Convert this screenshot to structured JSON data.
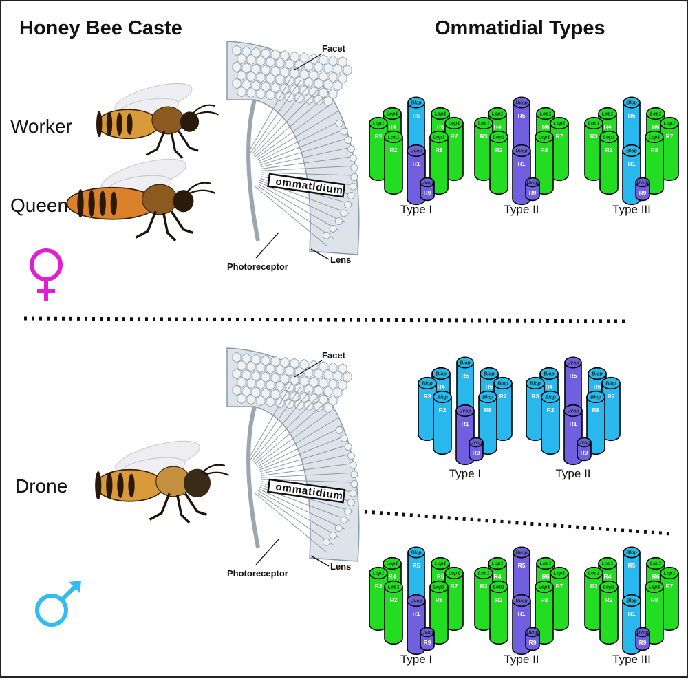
{
  "headings": {
    "caste": "Honey Bee Caste",
    "types": "Ommatidial Types"
  },
  "castes": {
    "worker": "Worker",
    "queen": "Queen",
    "drone": "Drone"
  },
  "eye_labels": {
    "facet": "Facet",
    "ommatidium": "ommatidium",
    "photoreceptor": "Photoreceptor",
    "lens": "Lens"
  },
  "type_labels": {
    "type1": "Type I",
    "type2": "Type II",
    "type3": "Type III"
  },
  "receptors": [
    "R1",
    "R2",
    "R3",
    "R4",
    "R5",
    "R6",
    "R7",
    "R8",
    "R9"
  ],
  "opsins": {
    "green": "Lop1",
    "blue": "Blop",
    "uv": "Uvop"
  },
  "colors": {
    "green": "#22dd22",
    "blue": "#29b8ee",
    "uv": "#7060e0",
    "female_symbol": "#e020d0",
    "male_symbol": "#33bbee",
    "eye_stroke": "#8a9aa6",
    "eye_fill": "#dde3e8"
  },
  "groups": [
    {
      "section": "female",
      "types": [
        {
          "label_key": "type1",
          "r5": "blue",
          "r1": "uv",
          "outer": "green"
        },
        {
          "label_key": "type2",
          "r5": "uv",
          "r1": "uv",
          "outer": "green"
        },
        {
          "label_key": "type3",
          "r5": "blue",
          "r1": "blue",
          "outer": "green"
        }
      ]
    },
    {
      "section": "drone-dorsal",
      "types": [
        {
          "label_key": "type1",
          "r5": "blue",
          "r1": "uv",
          "outer": "blue"
        },
        {
          "label_key": "type2",
          "r5": "uv",
          "r1": "uv",
          "outer": "blue"
        }
      ]
    },
    {
      "section": "drone-ventral",
      "types": [
        {
          "label_key": "type1",
          "r5": "blue",
          "r1": "uv",
          "outer": "green"
        },
        {
          "label_key": "type2",
          "r5": "uv",
          "r1": "uv",
          "outer": "green"
        },
        {
          "label_key": "type3",
          "r5": "blue",
          "r1": "blue",
          "outer": "green"
        }
      ]
    }
  ]
}
